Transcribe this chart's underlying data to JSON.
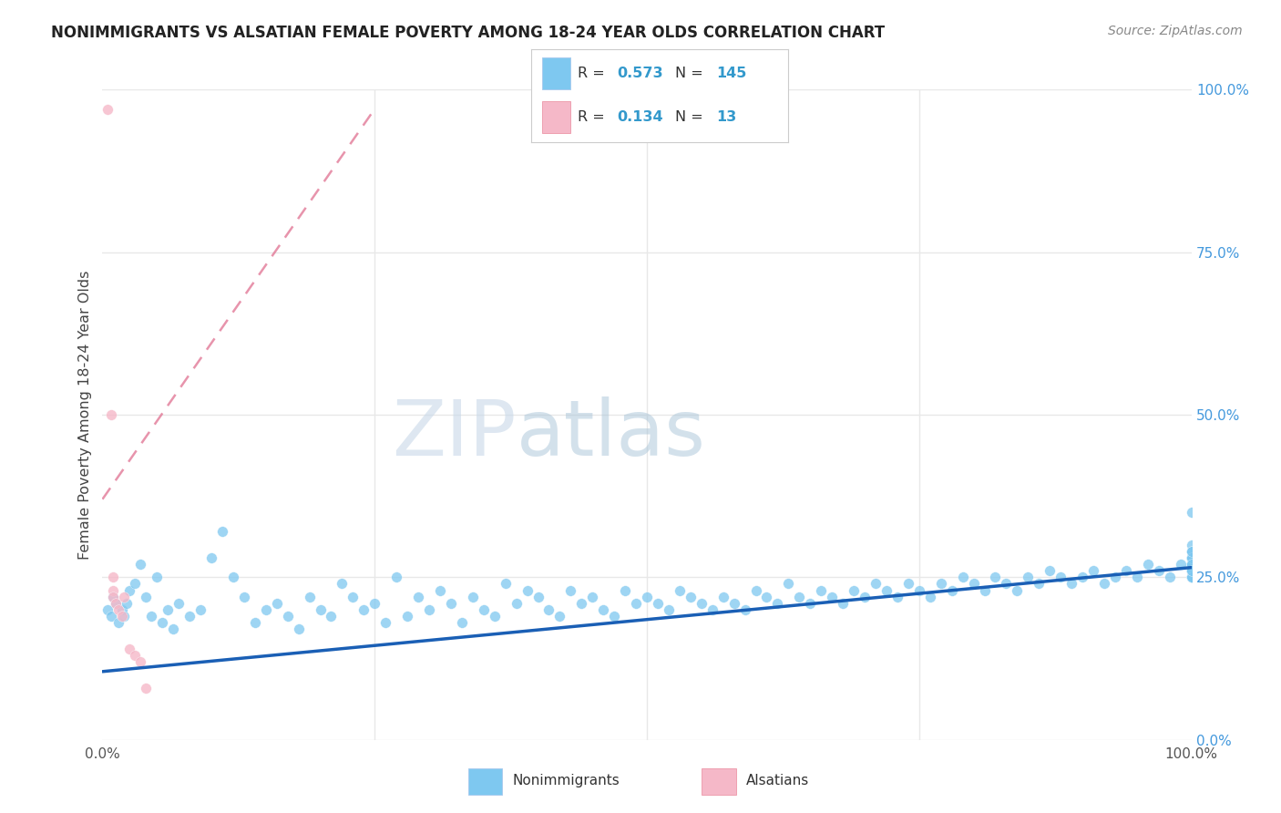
{
  "title": "NONIMMIGRANTS VS ALSATIAN FEMALE POVERTY AMONG 18-24 YEAR OLDS CORRELATION CHART",
  "source": "Source: ZipAtlas.com",
  "ylabel": "Female Poverty Among 18-24 Year Olds",
  "watermark_zip": "ZIP",
  "watermark_atlas": "atlas",
  "legend1_R": "0.573",
  "legend1_N": "145",
  "legend2_R": "0.134",
  "legend2_N": "13",
  "blue_scatter": "#7ec8f0",
  "pink_scatter": "#f5b8c8",
  "trend_blue": "#1a5fb5",
  "trend_pink": "#e07090",
  "title_color": "#222222",
  "source_color": "#888888",
  "ylabel_color": "#444444",
  "right_tick_color": "#4499dd",
  "bottom_tick_color": "#555555",
  "legend_text_color": "#333333",
  "legend_value_color": "#3399cc",
  "watermark_zip_color": "#c8d8e8",
  "watermark_atlas_color": "#a8c4d8",
  "grid_color": "#e8e8e8",
  "background_color": "#ffffff",
  "xlim": [
    0.0,
    1.0
  ],
  "ylim": [
    0.0,
    1.0
  ],
  "blue_x": [
    0.005,
    0.008,
    0.01,
    0.012,
    0.015,
    0.018,
    0.02,
    0.022,
    0.025,
    0.03,
    0.035,
    0.04,
    0.045,
    0.05,
    0.055,
    0.06,
    0.065,
    0.07,
    0.08,
    0.09,
    0.1,
    0.11,
    0.12,
    0.13,
    0.14,
    0.15,
    0.16,
    0.17,
    0.18,
    0.19,
    0.2,
    0.21,
    0.22,
    0.23,
    0.24,
    0.25,
    0.26,
    0.27,
    0.28,
    0.29,
    0.3,
    0.31,
    0.32,
    0.33,
    0.34,
    0.35,
    0.36,
    0.37,
    0.38,
    0.39,
    0.4,
    0.41,
    0.42,
    0.43,
    0.44,
    0.45,
    0.46,
    0.47,
    0.48,
    0.49,
    0.5,
    0.51,
    0.52,
    0.53,
    0.54,
    0.55,
    0.56,
    0.57,
    0.58,
    0.59,
    0.6,
    0.61,
    0.62,
    0.63,
    0.64,
    0.65,
    0.66,
    0.67,
    0.68,
    0.69,
    0.7,
    0.71,
    0.72,
    0.73,
    0.74,
    0.75,
    0.76,
    0.77,
    0.78,
    0.79,
    0.8,
    0.81,
    0.82,
    0.83,
    0.84,
    0.85,
    0.86,
    0.87,
    0.88,
    0.89,
    0.9,
    0.91,
    0.92,
    0.93,
    0.94,
    0.95,
    0.96,
    0.97,
    0.98,
    0.99,
    1.0,
    1.0,
    1.0,
    1.0,
    1.0,
    1.0,
    1.0,
    1.0,
    1.0,
    1.0,
    1.0,
    1.0,
    1.0,
    1.0,
    1.0,
    1.0,
    1.0,
    1.0,
    1.0,
    1.0,
    1.0,
    1.0,
    1.0,
    1.0,
    1.0,
    1.0,
    1.0,
    1.0,
    1.0,
    1.0,
    1.0,
    1.0,
    1.0,
    1.0,
    1.0
  ],
  "blue_y": [
    0.2,
    0.19,
    0.22,
    0.21,
    0.18,
    0.2,
    0.19,
    0.21,
    0.23,
    0.24,
    0.27,
    0.22,
    0.19,
    0.25,
    0.18,
    0.2,
    0.17,
    0.21,
    0.19,
    0.2,
    0.28,
    0.32,
    0.25,
    0.22,
    0.18,
    0.2,
    0.21,
    0.19,
    0.17,
    0.22,
    0.2,
    0.19,
    0.24,
    0.22,
    0.2,
    0.21,
    0.18,
    0.25,
    0.19,
    0.22,
    0.2,
    0.23,
    0.21,
    0.18,
    0.22,
    0.2,
    0.19,
    0.24,
    0.21,
    0.23,
    0.22,
    0.2,
    0.19,
    0.23,
    0.21,
    0.22,
    0.2,
    0.19,
    0.23,
    0.21,
    0.22,
    0.21,
    0.2,
    0.23,
    0.22,
    0.21,
    0.2,
    0.22,
    0.21,
    0.2,
    0.23,
    0.22,
    0.21,
    0.24,
    0.22,
    0.21,
    0.23,
    0.22,
    0.21,
    0.23,
    0.22,
    0.24,
    0.23,
    0.22,
    0.24,
    0.23,
    0.22,
    0.24,
    0.23,
    0.25,
    0.24,
    0.23,
    0.25,
    0.24,
    0.23,
    0.25,
    0.24,
    0.26,
    0.25,
    0.24,
    0.25,
    0.26,
    0.24,
    0.25,
    0.26,
    0.25,
    0.27,
    0.26,
    0.25,
    0.27,
    0.26,
    0.27,
    0.25,
    0.28,
    0.26,
    0.27,
    0.28,
    0.25,
    0.26,
    0.27,
    0.26,
    0.28,
    0.25,
    0.27,
    0.26,
    0.28,
    0.27,
    0.29,
    0.25,
    0.3,
    0.27,
    0.28,
    0.26,
    0.29,
    0.27,
    0.26,
    0.28,
    0.35,
    0.26,
    0.27,
    0.28,
    0.29,
    0.25,
    0.27,
    0.26
  ],
  "pink_x": [
    0.005,
    0.008,
    0.01,
    0.01,
    0.01,
    0.012,
    0.015,
    0.018,
    0.02,
    0.025,
    0.03,
    0.035,
    0.04
  ],
  "pink_y": [
    0.97,
    0.5,
    0.25,
    0.23,
    0.22,
    0.21,
    0.2,
    0.19,
    0.22,
    0.14,
    0.13,
    0.12,
    0.08
  ],
  "trend_blue_x0": 0.0,
  "trend_blue_y0": 0.105,
  "trend_blue_x1": 1.0,
  "trend_blue_y1": 0.265,
  "trend_pink_x0": 0.0,
  "trend_pink_y0": 0.37,
  "trend_pink_x1": 0.25,
  "trend_pink_y1": 0.97
}
